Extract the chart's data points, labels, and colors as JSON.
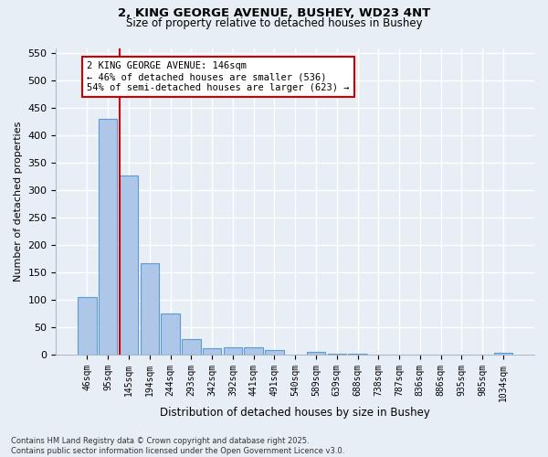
{
  "title_line1": "2, KING GEORGE AVENUE, BUSHEY, WD23 4NT",
  "title_line2": "Size of property relative to detached houses in Bushey",
  "bar_labels": [
    "46sqm",
    "95sqm",
    "145sqm",
    "194sqm",
    "244sqm",
    "293sqm",
    "342sqm",
    "392sqm",
    "441sqm",
    "491sqm",
    "540sqm",
    "589sqm",
    "639sqm",
    "688sqm",
    "738sqm",
    "787sqm",
    "836sqm",
    "886sqm",
    "935sqm",
    "985sqm",
    "1034sqm"
  ],
  "bar_values": [
    105,
    430,
    327,
    167,
    75,
    29,
    12,
    14,
    13,
    9,
    0,
    5,
    2,
    1,
    0,
    0,
    0,
    0,
    0,
    0,
    4
  ],
  "bar_color": "#aec6e8",
  "bar_edge_color": "#5b9bd5",
  "ylabel": "Number of detached properties",
  "xlabel": "Distribution of detached houses by size in Bushey",
  "ylim": [
    0,
    560
  ],
  "yticks": [
    0,
    50,
    100,
    150,
    200,
    250,
    300,
    350,
    400,
    450,
    500,
    550
  ],
  "vline_x_index": 2,
  "vline_color": "#cc0000",
  "annotation_text": "2 KING GEORGE AVENUE: 146sqm\n← 46% of detached houses are smaller (536)\n54% of semi-detached houses are larger (623) →",
  "annotation_box_color": "#cc0000",
  "footer_line1": "Contains HM Land Registry data © Crown copyright and database right 2025.",
  "footer_line2": "Contains public sector information licensed under the Open Government Licence v3.0.",
  "bg_color": "#e8eef5",
  "plot_bg_color": "#e8eef5",
  "grid_color": "#ffffff"
}
